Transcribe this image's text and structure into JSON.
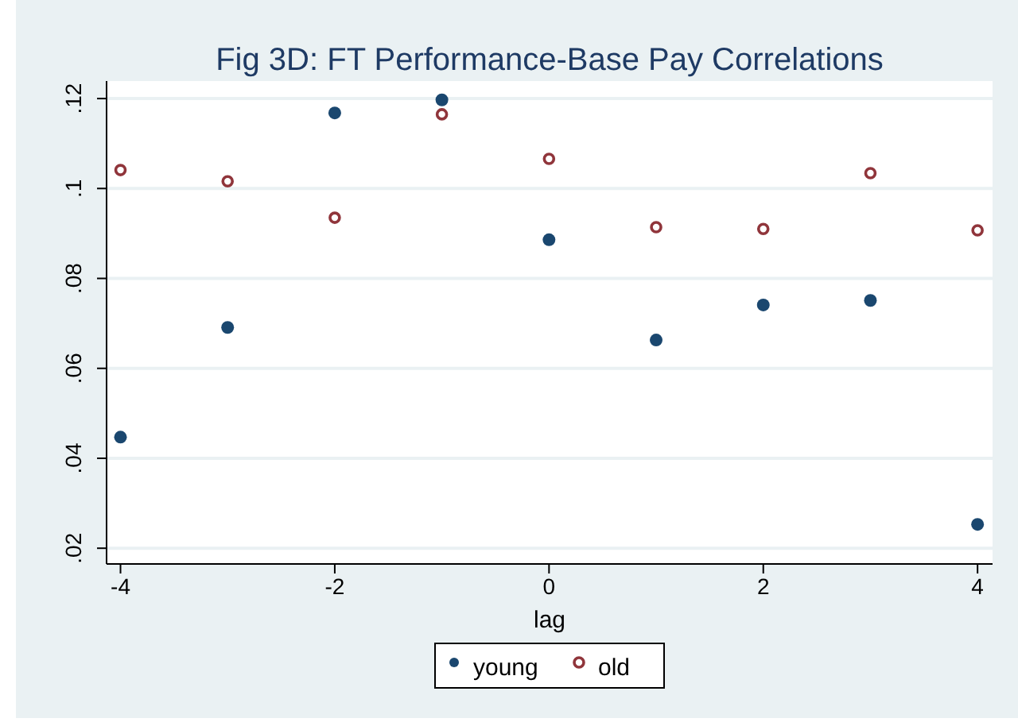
{
  "chart_data": {
    "type": "scatter",
    "title": "Fig 3D: FT Performance-Base Pay Correlations",
    "xlabel": "lag",
    "x": [
      -4,
      -3,
      -2,
      -1,
      0,
      1,
      2,
      3,
      4
    ],
    "series": [
      {
        "name": "young",
        "color": "#1a476f",
        "marker": "circle",
        "values": [
          0.0447,
          0.0691,
          0.1168,
          0.1197,
          0.0886,
          0.0663,
          0.0741,
          0.0751,
          0.0253
        ]
      },
      {
        "name": "old",
        "color": "#90353b",
        "marker": "hollow-circle",
        "values": [
          0.1041,
          0.1016,
          0.0935,
          0.1165,
          0.1066,
          0.0914,
          0.091,
          0.1034,
          0.0907
        ]
      }
    ],
    "xlim": [
      -4.13,
      4.14
    ],
    "xticks": [
      -4,
      -2,
      0,
      2,
      4
    ],
    "ylim": [
      0.0165,
      0.1239
    ],
    "yticks": [
      {
        "value": 0.02,
        "label": ".02"
      },
      {
        "value": 0.04,
        "label": ".04"
      },
      {
        "value": 0.06,
        "label": ".06"
      },
      {
        "value": 0.08,
        "label": ".08"
      },
      {
        "value": 0.1,
        "label": ".1"
      },
      {
        "value": 0.12,
        "label": ".12"
      }
    ],
    "grid": "y",
    "legend": "bottom"
  }
}
